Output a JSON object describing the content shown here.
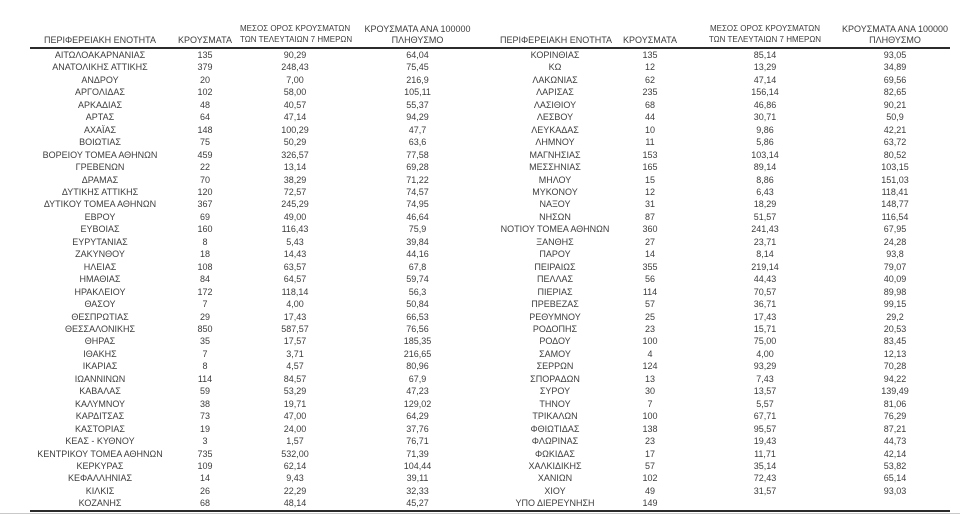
{
  "colors": {
    "background": "#ffffff",
    "text": "#3d3d3d",
    "rule": "#2b2b2b",
    "faint_bottom_line": "#c9c9c9"
  },
  "table_headers": {
    "region": "ΠΕΡΙΦΕΡΕΙΑΚΗ ΕΝΟΤΗΤΑ",
    "cases": "ΚΡΟΥΣΜΑΤΑ",
    "avg7_line1": "ΜΕΣΟΣ ΟΡΟΣ ΚΡΟΥΣΜΑΤΩΝ",
    "avg7_line2": "ΤΩΝ ΤΕΛΕΥΤΑΙΩΝ 7 ΗΜΕΡΩΝ",
    "per100k_line1": "ΚΡΟΥΣΜΑΤΑ ΑΝΑ 100000",
    "per100k_line2": "ΠΛΗΘΥΣΜΟ"
  },
  "left_table": {
    "rows": [
      {
        "name": "ΑΙΤΩΛΟΑΚΑΡΝΑΝΙΑΣ",
        "cases": "135",
        "avg7": "90,29",
        "per100k": "64,04"
      },
      {
        "name": "ΑΝΑΤΟΛΙΚΗΣ ΑΤΤΙΚΗΣ",
        "cases": "379",
        "avg7": "248,43",
        "per100k": "75,45"
      },
      {
        "name": "ΑΝΔΡΟΥ",
        "cases": "20",
        "avg7": "7,00",
        "per100k": "216,9"
      },
      {
        "name": "ΑΡΓΟΛΙΔΑΣ",
        "cases": "102",
        "avg7": "58,00",
        "per100k": "105,11"
      },
      {
        "name": "ΑΡΚΑΔΙΑΣ",
        "cases": "48",
        "avg7": "40,57",
        "per100k": "55,37"
      },
      {
        "name": "ΑΡΤΑΣ",
        "cases": "64",
        "avg7": "47,14",
        "per100k": "94,29"
      },
      {
        "name": "ΑΧΑΪΑΣ",
        "cases": "148",
        "avg7": "100,29",
        "per100k": "47,7"
      },
      {
        "name": "ΒΟΙΩΤΙΑΣ",
        "cases": "75",
        "avg7": "50,29",
        "per100k": "63,6"
      },
      {
        "name": "ΒΟΡΕΙΟΥ ΤΟΜΕΑ ΑΘΗΝΩΝ",
        "cases": "459",
        "avg7": "326,57",
        "per100k": "77,58"
      },
      {
        "name": "ΓΡΕΒΕΝΩΝ",
        "cases": "22",
        "avg7": "13,14",
        "per100k": "69,28"
      },
      {
        "name": "ΔΡΑΜΑΣ",
        "cases": "70",
        "avg7": "38,29",
        "per100k": "71,22"
      },
      {
        "name": "ΔΥΤΙΚΗΣ ΑΤΤΙΚΗΣ",
        "cases": "120",
        "avg7": "72,57",
        "per100k": "74,57"
      },
      {
        "name": "ΔΥΤΙΚΟΥ ΤΟΜΕΑ ΑΘΗΝΩΝ",
        "cases": "367",
        "avg7": "245,29",
        "per100k": "74,95"
      },
      {
        "name": "ΕΒΡΟΥ",
        "cases": "69",
        "avg7": "49,00",
        "per100k": "46,64"
      },
      {
        "name": "ΕΥΒΟΙΑΣ",
        "cases": "160",
        "avg7": "116,43",
        "per100k": "75,9"
      },
      {
        "name": "ΕΥΡΥΤΑΝΙΑΣ",
        "cases": "8",
        "avg7": "5,43",
        "per100k": "39,84"
      },
      {
        "name": "ΖΑΚΥΝΘΟΥ",
        "cases": "18",
        "avg7": "14,43",
        "per100k": "44,16"
      },
      {
        "name": "ΗΛΕΙΑΣ",
        "cases": "108",
        "avg7": "63,57",
        "per100k": "67,8"
      },
      {
        "name": "ΗΜΑΘΙΑΣ",
        "cases": "84",
        "avg7": "64,57",
        "per100k": "59,74"
      },
      {
        "name": "ΗΡΑΚΛΕΙΟΥ",
        "cases": "172",
        "avg7": "118,14",
        "per100k": "56,3"
      },
      {
        "name": "ΘΑΣΟΥ",
        "cases": "7",
        "avg7": "4,00",
        "per100k": "50,84"
      },
      {
        "name": "ΘΕΣΠΡΩΤΙΑΣ",
        "cases": "29",
        "avg7": "17,43",
        "per100k": "66,53"
      },
      {
        "name": "ΘΕΣΣΑΛΟΝΙΚΗΣ",
        "cases": "850",
        "avg7": "587,57",
        "per100k": "76,56"
      },
      {
        "name": "ΘΗΡΑΣ",
        "cases": "35",
        "avg7": "17,57",
        "per100k": "185,35"
      },
      {
        "name": "ΙΘΑΚΗΣ",
        "cases": "7",
        "avg7": "3,71",
        "per100k": "216,65"
      },
      {
        "name": "ΙΚΑΡΙΑΣ",
        "cases": "8",
        "avg7": "4,57",
        "per100k": "80,96"
      },
      {
        "name": "ΙΩΑΝΝΙΝΩΝ",
        "cases": "114",
        "avg7": "84,57",
        "per100k": "67,9"
      },
      {
        "name": "ΚΑΒΑΛΑΣ",
        "cases": "59",
        "avg7": "53,29",
        "per100k": "47,23"
      },
      {
        "name": "ΚΑΛΥΜΝΟΥ",
        "cases": "38",
        "avg7": "19,71",
        "per100k": "129,02"
      },
      {
        "name": "ΚΑΡΔΙΤΣΑΣ",
        "cases": "73",
        "avg7": "47,00",
        "per100k": "64,29"
      },
      {
        "name": "ΚΑΣΤΟΡΙΑΣ",
        "cases": "19",
        "avg7": "24,00",
        "per100k": "37,76"
      },
      {
        "name": "ΚΕΑΣ - ΚΥΘΝΟΥ",
        "cases": "3",
        "avg7": "1,57",
        "per100k": "76,71"
      },
      {
        "name": "ΚΕΝΤΡΙΚΟΥ ΤΟΜΕΑ ΑΘΗΝΩΝ",
        "cases": "735",
        "avg7": "532,00",
        "per100k": "71,39"
      },
      {
        "name": "ΚΕΡΚΥΡΑΣ",
        "cases": "109",
        "avg7": "62,14",
        "per100k": "104,44"
      },
      {
        "name": "ΚΕΦΑΛΛΗΝΙΑΣ",
        "cases": "14",
        "avg7": "9,43",
        "per100k": "39,11"
      },
      {
        "name": "ΚΙΛΚΙΣ",
        "cases": "26",
        "avg7": "22,29",
        "per100k": "32,33"
      },
      {
        "name": "ΚΟΖΑΝΗΣ",
        "cases": "68",
        "avg7": "48,14",
        "per100k": "45,27"
      }
    ]
  },
  "right_table": {
    "rows": [
      {
        "name": "ΚΟΡΙΝΘΙΑΣ",
        "cases": "135",
        "avg7": "85,14",
        "per100k": "93,05"
      },
      {
        "name": "ΚΩ",
        "cases": "12",
        "avg7": "13,29",
        "per100k": "34,89"
      },
      {
        "name": "ΛΑΚΩΝΙΑΣ",
        "cases": "62",
        "avg7": "47,14",
        "per100k": "69,56"
      },
      {
        "name": "ΛΑΡΙΣΑΣ",
        "cases": "235",
        "avg7": "156,14",
        "per100k": "82,65"
      },
      {
        "name": "ΛΑΣΙΘΙΟΥ",
        "cases": "68",
        "avg7": "46,86",
        "per100k": "90,21"
      },
      {
        "name": "ΛΕΣΒΟΥ",
        "cases": "44",
        "avg7": "30,71",
        "per100k": "50,9"
      },
      {
        "name": "ΛΕΥΚΑΔΑΣ",
        "cases": "10",
        "avg7": "9,86",
        "per100k": "42,21"
      },
      {
        "name": "ΛΗΜΝΟΥ",
        "cases": "11",
        "avg7": "5,86",
        "per100k": "63,72"
      },
      {
        "name": "ΜΑΓΝΗΣΙΑΣ",
        "cases": "153",
        "avg7": "103,14",
        "per100k": "80,52"
      },
      {
        "name": "ΜΕΣΣΗΝΙΑΣ",
        "cases": "165",
        "avg7": "89,14",
        "per100k": "103,15"
      },
      {
        "name": "ΜΗΛΟΥ",
        "cases": "15",
        "avg7": "8,86",
        "per100k": "151,03"
      },
      {
        "name": "ΜΥΚΟΝΟΥ",
        "cases": "12",
        "avg7": "6,43",
        "per100k": "118,41"
      },
      {
        "name": "ΝΑΞΟΥ",
        "cases": "31",
        "avg7": "18,29",
        "per100k": "148,77"
      },
      {
        "name": "ΝΗΣΩΝ",
        "cases": "87",
        "avg7": "51,57",
        "per100k": "116,54"
      },
      {
        "name": "ΝΟΤΙΟΥ ΤΟΜΕΑ ΑΘΗΝΩΝ",
        "cases": "360",
        "avg7": "241,43",
        "per100k": "67,95"
      },
      {
        "name": "ΞΑΝΘΗΣ",
        "cases": "27",
        "avg7": "23,71",
        "per100k": "24,28"
      },
      {
        "name": "ΠΑΡΟΥ",
        "cases": "14",
        "avg7": "8,14",
        "per100k": "93,8"
      },
      {
        "name": "ΠΕΙΡΑΙΩΣ",
        "cases": "355",
        "avg7": "219,14",
        "per100k": "79,07"
      },
      {
        "name": "ΠΕΛΛΑΣ",
        "cases": "56",
        "avg7": "44,43",
        "per100k": "40,09"
      },
      {
        "name": "ΠΙΕΡΙΑΣ",
        "cases": "114",
        "avg7": "70,57",
        "per100k": "89,98"
      },
      {
        "name": "ΠΡΕΒΕΖΑΣ",
        "cases": "57",
        "avg7": "36,71",
        "per100k": "99,15"
      },
      {
        "name": "ΡΕΘΥΜΝΟΥ",
        "cases": "25",
        "avg7": "17,43",
        "per100k": "29,2"
      },
      {
        "name": "ΡΟΔΟΠΗΣ",
        "cases": "23",
        "avg7": "15,71",
        "per100k": "20,53"
      },
      {
        "name": "ΡΟΔΟΥ",
        "cases": "100",
        "avg7": "75,00",
        "per100k": "83,45"
      },
      {
        "name": "ΣΑΜΟΥ",
        "cases": "4",
        "avg7": "4,00",
        "per100k": "12,13"
      },
      {
        "name": "ΣΕΡΡΩΝ",
        "cases": "124",
        "avg7": "93,29",
        "per100k": "70,28"
      },
      {
        "name": "ΣΠΟΡΑΔΩΝ",
        "cases": "13",
        "avg7": "7,43",
        "per100k": "94,22"
      },
      {
        "name": "ΣΥΡΟΥ",
        "cases": "30",
        "avg7": "13,57",
        "per100k": "139,49"
      },
      {
        "name": "ΤΗΝΟΥ",
        "cases": "7",
        "avg7": "5,57",
        "per100k": "81,06"
      },
      {
        "name": "ΤΡΙΚΑΛΩΝ",
        "cases": "100",
        "avg7": "67,71",
        "per100k": "76,29"
      },
      {
        "name": "ΦΘΙΩΤΙΔΑΣ",
        "cases": "138",
        "avg7": "95,57",
        "per100k": "87,21"
      },
      {
        "name": "ΦΛΩΡΙΝΑΣ",
        "cases": "23",
        "avg7": "19,43",
        "per100k": "44,73"
      },
      {
        "name": "ΦΩΚΙΔΑΣ",
        "cases": "17",
        "avg7": "11,71",
        "per100k": "42,14"
      },
      {
        "name": "ΧΑΛΚΙΔΙΚΗΣ",
        "cases": "57",
        "avg7": "35,14",
        "per100k": "53,82"
      },
      {
        "name": "ΧΑΝΙΩΝ",
        "cases": "102",
        "avg7": "72,43",
        "per100k": "65,14"
      },
      {
        "name": "ΧΙΟΥ",
        "cases": "49",
        "avg7": "31,57",
        "per100k": "93,03"
      },
      {
        "name": "ΥΠΟ ΔΙΕΡΕΥΝΗΣΗ",
        "cases": "149",
        "avg7": "",
        "per100k": ""
      }
    ]
  }
}
